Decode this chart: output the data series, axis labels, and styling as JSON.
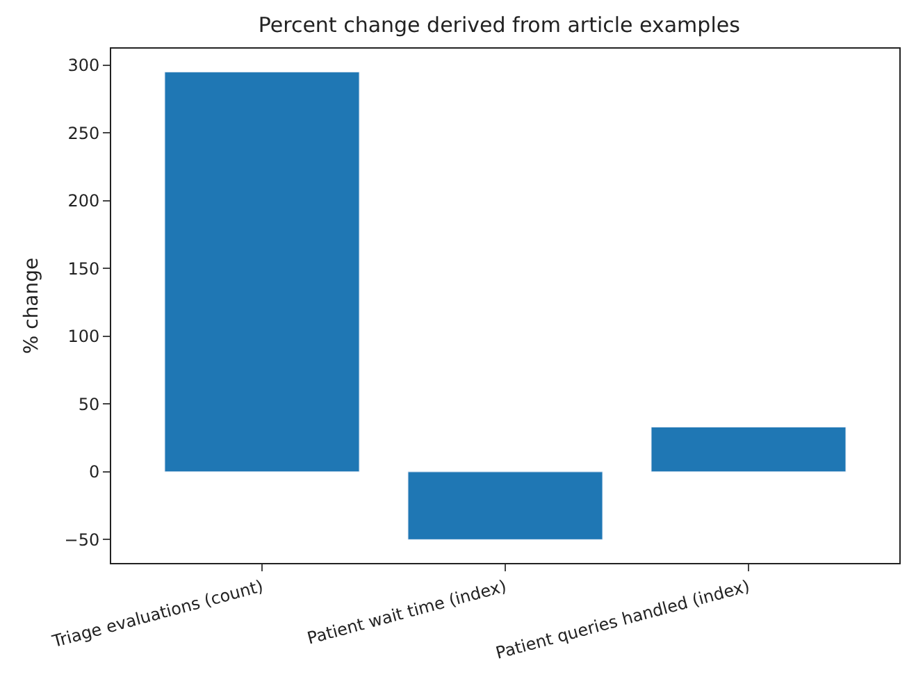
{
  "chart_data": {
    "type": "bar",
    "title": "Percent change derived from article examples",
    "ylabel": "% change",
    "categories": [
      "Triage evaluations (count)",
      "Patient wait time (index)",
      "Patient queries handled (index)"
    ],
    "values": [
      295,
      -50,
      33
    ],
    "color": "#1f77b4",
    "ylim": [
      -67.25,
      312.25
    ],
    "yticks": [
      -50,
      0,
      50,
      100,
      150,
      200,
      250,
      300
    ]
  }
}
